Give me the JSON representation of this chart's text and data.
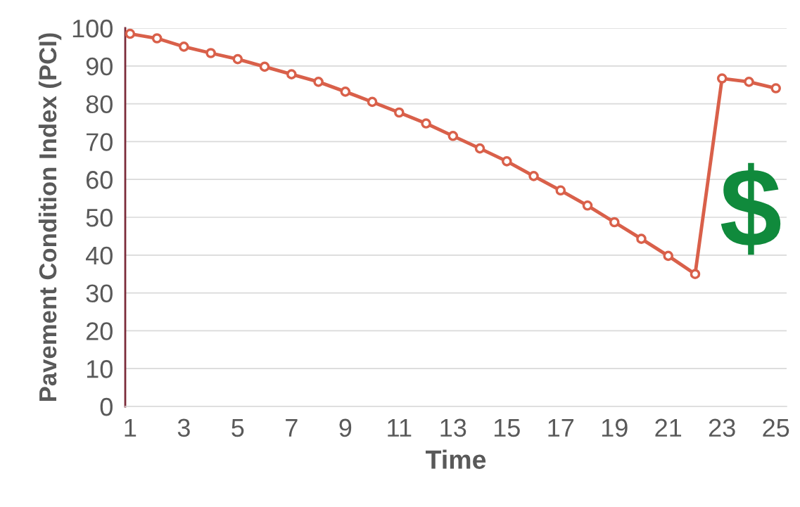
{
  "chart_data": {
    "type": "line",
    "xlabel": "Time",
    "ylabel": "Pavement Condition Index (PCI)",
    "x": [
      1,
      2,
      3,
      4,
      5,
      6,
      7,
      8,
      9,
      10,
      11,
      12,
      13,
      14,
      15,
      16,
      17,
      18,
      19,
      20,
      21,
      22,
      23,
      24,
      25
    ],
    "series": [
      {
        "color": "#d9604a",
        "values": [
          98.5,
          97.3,
          95.1,
          93.4,
          91.8,
          89.8,
          87.8,
          85.8,
          83.2,
          80.5,
          77.7,
          74.8,
          71.5,
          68.2,
          64.8,
          60.9,
          57.1,
          53.1,
          48.7,
          44.3,
          39.8,
          35.0,
          86.7,
          85.8,
          84.1
        ]
      }
    ],
    "xlim": [
      0.82,
      25.4
    ],
    "xticks": [
      1,
      3,
      5,
      7,
      9,
      11,
      13,
      15,
      17,
      19,
      21,
      23,
      25
    ],
    "ylim": [
      0,
      100
    ],
    "yticks": [
      0,
      10,
      20,
      30,
      40,
      50,
      60,
      70,
      80,
      90,
      100
    ],
    "grid": "y",
    "marker": "circle",
    "line_style": "solid",
    "annotations": [
      "$"
    ]
  }
}
